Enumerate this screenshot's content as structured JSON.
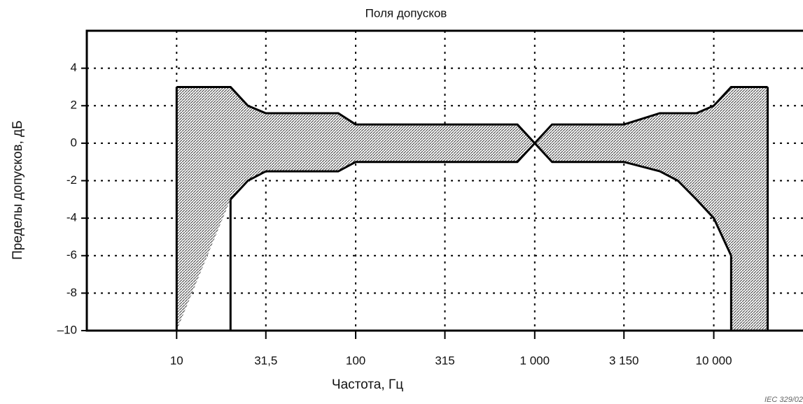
{
  "chart_data": {
    "type": "line",
    "title": "Поля допусков",
    "x_label": "Частота, Гц",
    "y_label": "Пределы  допусков,  дБ",
    "source": "IEC  329/02",
    "x_scale": "log",
    "x": [
      10,
      20,
      25,
      31.5,
      80,
      100,
      800,
      1000,
      1250,
      3150,
      5000,
      6300,
      8000,
      10000,
      12500,
      20000
    ],
    "series": [
      {
        "color": "#000000",
        "values": [
          3,
          3,
          2,
          1.6,
          1.6,
          1,
          1,
          0,
          1,
          1,
          1.6,
          1.6,
          1.6,
          2,
          3,
          3
        ]
      },
      {
        "color": "#000000",
        "values": [
          null,
          -3,
          -2,
          -1.5,
          -1.5,
          -1,
          -1,
          0,
          -1,
          -1,
          -1.5,
          -2,
          -3,
          -4,
          -6,
          null
        ]
      }
    ],
    "fill_color": "#9a9a9a",
    "xlim": [
      3.15,
      31500
    ],
    "ylim": [
      -10,
      6
    ],
    "xticks": [
      10,
      {
        "value": 31.5,
        "label": "31,5"
      },
      100,
      315,
      {
        "value": 1000,
        "label": "1 000"
      },
      {
        "value": 3150,
        "label": "3 150"
      },
      {
        "value": 10000,
        "label": "10 000"
      }
    ],
    "yticks": [
      {
        "value": -10,
        "label": "–10"
      },
      -8,
      -6,
      -4,
      -2,
      0,
      2,
      4
    ],
    "grid": true
  }
}
